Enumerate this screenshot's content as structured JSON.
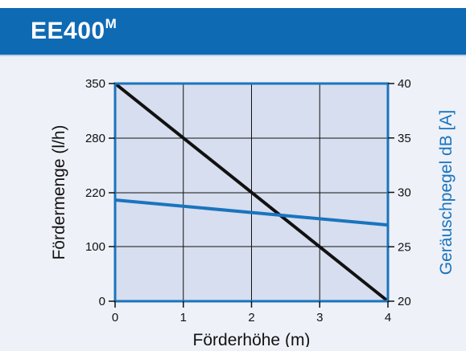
{
  "header": {
    "title": "EE400",
    "title_sup": "M"
  },
  "colors": {
    "header_bg": "#0f6ab4",
    "plot_bg": "#d6deef",
    "page_bg": "#eef1f8",
    "flow_line": "#111111",
    "noise_line": "#1a74bd",
    "frame": "#1a74bd"
  },
  "chart_data": {
    "type": "line",
    "xlabel": "Förderhöhe (m)",
    "ylabel": "Fördermenge (l/h)",
    "y2label": "Geräuschpegel dB [A]",
    "xlim": [
      0,
      4
    ],
    "x_ticks": [
      "0",
      "1",
      "2",
      "3",
      "4"
    ],
    "y_ticks": [
      {
        "value": 0,
        "label": "0"
      },
      {
        "value": 100,
        "label": "100"
      },
      {
        "value": 220,
        "label": "220"
      },
      {
        "value": 280,
        "label": "280"
      },
      {
        "value": 350,
        "label": "350"
      }
    ],
    "y2lim": [
      20,
      40
    ],
    "y2_ticks": [
      "20",
      "25",
      "30",
      "35",
      "40"
    ],
    "grid": true,
    "series": [
      {
        "axis": "left",
        "color": "#111111",
        "x": [
          0,
          4
        ],
        "y": [
          350,
          0
        ]
      },
      {
        "axis": "right",
        "color": "#1a74bd",
        "x": [
          0,
          4
        ],
        "y": [
          29.3,
          27
        ]
      }
    ]
  }
}
